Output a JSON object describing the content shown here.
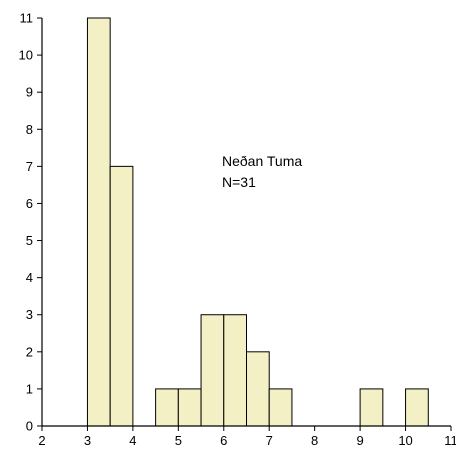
{
  "chart_data": {
    "type": "bar",
    "title": "",
    "xlabel": "",
    "ylabel": "",
    "xlim": [
      2,
      11
    ],
    "ylim": [
      0,
      11
    ],
    "xticks": [
      2,
      3,
      4,
      5,
      6,
      7,
      8,
      9,
      10,
      11
    ],
    "yticks": [
      0,
      1,
      2,
      3,
      4,
      5,
      6,
      7,
      8,
      9,
      10,
      11
    ],
    "bin_width": 0.5,
    "bins": [
      {
        "x0": 3.0,
        "x1": 3.5,
        "count": 11
      },
      {
        "x0": 3.5,
        "x1": 4.0,
        "count": 7
      },
      {
        "x0": 4.5,
        "x1": 5.0,
        "count": 1
      },
      {
        "x0": 5.0,
        "x1": 5.5,
        "count": 1
      },
      {
        "x0": 5.5,
        "x1": 6.0,
        "count": 3
      },
      {
        "x0": 6.0,
        "x1": 6.5,
        "count": 3
      },
      {
        "x0": 6.5,
        "x1": 7.0,
        "count": 2
      },
      {
        "x0": 7.0,
        "x1": 7.5,
        "count": 1
      },
      {
        "x0": 9.0,
        "x1": 9.5,
        "count": 1
      },
      {
        "x0": 10.0,
        "x1": 10.5,
        "count": 1
      }
    ],
    "annotation": [
      "Neðan Tuma",
      "N=31"
    ],
    "bar_color": "#f2f0c4",
    "grid": false
  }
}
